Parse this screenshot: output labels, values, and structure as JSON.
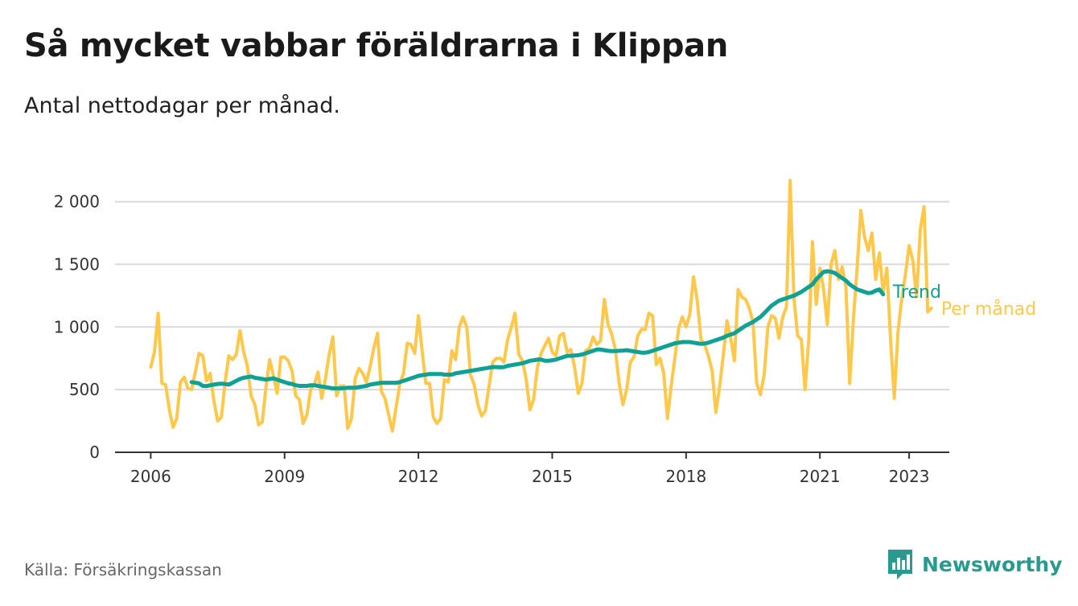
{
  "title": "Så mycket vabbar föräldrarna i Klippan",
  "subtitle": "Antal nettodagar per månad.",
  "source": "Källa: Försäkringskassan",
  "brand": {
    "name": "Newsworthy",
    "logo_icon": "bar-chart-speech-bubble-icon",
    "color": "#2a9a91"
  },
  "chart_data": {
    "type": "line",
    "x_tick_labels": [
      "2006",
      "2009",
      "2012",
      "2015",
      "2018",
      "2021",
      "2023"
    ],
    "x_ticks": [
      2006,
      2009,
      2012,
      2015,
      2018,
      2021,
      2023
    ],
    "y_tick_labels": [
      "0",
      "500",
      "1 000",
      "1 500",
      "2 000"
    ],
    "y_ticks": [
      0,
      500,
      1000,
      1500,
      2000
    ],
    "xlim": [
      2005.2,
      2023.9
    ],
    "ylim": [
      0,
      2100
    ],
    "grid": "horizontal",
    "series": [
      {
        "name": "Per månad",
        "color": "#ffc84a",
        "x_start": 2006.0,
        "x_step_months": 1,
        "values": [
          680,
          800,
          1110,
          550,
          540,
          340,
          200,
          270,
          560,
          600,
          510,
          500,
          640,
          790,
          770,
          570,
          630,
          410,
          250,
          280,
          560,
          770,
          740,
          780,
          970,
          800,
          690,
          450,
          380,
          220,
          240,
          520,
          740,
          610,
          470,
          760,
          760,
          730,
          650,
          450,
          420,
          230,
          300,
          500,
          540,
          640,
          430,
          590,
          780,
          920,
          450,
          530,
          530,
          190,
          270,
          590,
          670,
          630,
          560,
          680,
          830,
          950,
          490,
          430,
          300,
          170,
          360,
          550,
          630,
          870,
          860,
          790,
          1090,
          810,
          550,
          550,
          280,
          230,
          270,
          580,
          560,
          810,
          740,
          1000,
          1080,
          1000,
          620,
          540,
          380,
          290,
          330,
          530,
          720,
          750,
          750,
          720,
          900,
          1000,
          1110,
          780,
          730,
          580,
          340,
          420,
          680,
          790,
          850,
          910,
          800,
          770,
          930,
          950,
          800,
          820,
          680,
          470,
          550,
          810,
          830,
          920,
          860,
          890,
          1220,
          1020,
          940,
          820,
          550,
          380,
          500,
          720,
          760,
          930,
          980,
          980,
          1110,
          1090,
          700,
          750,
          630,
          270,
          530,
          760,
          990,
          1080,
          1000,
          1100,
          1400,
          1210,
          900,
          860,
          770,
          650,
          320,
          520,
          770,
          1050,
          910,
          730,
          1300,
          1240,
          1220,
          1150,
          1040,
          550,
          460,
          620,
          1000,
          1090,
          1070,
          910,
          1080,
          1160,
          2170,
          1240,
          930,
          900,
          500,
          900,
          1680,
          1180,
          1470,
          1300,
          1020,
          1500,
          1610,
          1380,
          1480,
          1320,
          550,
          1060,
          1470,
          1930,
          1720,
          1610,
          1750,
          1380,
          1590,
          1280,
          1470,
          900,
          430,
          960,
          1220,
          1420,
          1650,
          1530,
          1240,
          1780,
          1960,
          1120,
          1150
        ]
      },
      {
        "name": "Trend",
        "color": "#0fa096",
        "x_start": 2006.917,
        "x_step_months": 1,
        "values": [
          560,
          555,
          550,
          530,
          528,
          535,
          540,
          545,
          548,
          545,
          540,
          555,
          570,
          585,
          595,
          600,
          605,
          595,
          590,
          585,
          580,
          585,
          590,
          580,
          570,
          560,
          550,
          545,
          535,
          530,
          530,
          530,
          535,
          535,
          530,
          525,
          520,
          515,
          510,
          510,
          510,
          512,
          515,
          515,
          515,
          520,
          525,
          530,
          540,
          545,
          550,
          555,
          555,
          555,
          555,
          555,
          560,
          570,
          580,
          590,
          600,
          610,
          615,
          620,
          625,
          625,
          625,
          625,
          620,
          620,
          620,
          630,
          635,
          640,
          645,
          650,
          655,
          660,
          665,
          670,
          675,
          680,
          680,
          678,
          680,
          690,
          695,
          700,
          705,
          710,
          720,
          730,
          735,
          740,
          740,
          730,
          730,
          735,
          740,
          750,
          760,
          770,
          770,
          772,
          775,
          780,
          790,
          800,
          810,
          820,
          820,
          815,
          810,
          808,
          808,
          810,
          812,
          815,
          810,
          805,
          800,
          795,
          795,
          800,
          810,
          820,
          830,
          840,
          850,
          860,
          870,
          875,
          880,
          880,
          880,
          875,
          870,
          865,
          868,
          875,
          885,
          895,
          905,
          915,
          930,
          940,
          950,
          970,
          990,
          1010,
          1025,
          1040,
          1060,
          1080,
          1110,
          1140,
          1170,
          1190,
          1210,
          1220,
          1230,
          1240,
          1250,
          1265,
          1280,
          1300,
          1320,
          1340,
          1380,
          1410,
          1440,
          1445,
          1440,
          1430,
          1410,
          1390,
          1370,
          1340,
          1320,
          1300,
          1290,
          1280,
          1270,
          1275,
          1290,
          1300,
          1260
        ]
      }
    ]
  }
}
